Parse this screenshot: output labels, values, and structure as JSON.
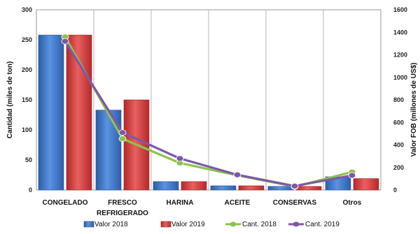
{
  "chart_data": {
    "type": "bar",
    "categories": [
      "CONGELADO",
      "FRESCO REFRIGERADO",
      "HARINA",
      "ACEITE",
      "CONSERVAS",
      "Otros"
    ],
    "category_lines": [
      [
        "CONGELADO"
      ],
      [
        "FRESCO",
        "REFRIGERADO"
      ],
      [
        "HARINA"
      ],
      [
        "ACEITE"
      ],
      [
        "CONSERVAS"
      ],
      [
        "Otros"
      ]
    ],
    "series": [
      {
        "name": "Valor 2018",
        "kind": "bar",
        "axis": "left",
        "color": "#3a73c4",
        "values": [
          258,
          133,
          14,
          7,
          6,
          22
        ]
      },
      {
        "name": "Valor 2019",
        "kind": "bar",
        "axis": "left",
        "color": "#d23b3b",
        "values": [
          258,
          150,
          14,
          7,
          6,
          19
        ]
      },
      {
        "name": "Cant. 2018",
        "kind": "line",
        "axis": "right",
        "color": "#8cc34a",
        "values": [
          1360,
          455,
          240,
          130,
          30,
          160
        ]
      },
      {
        "name": "Cant. 2019",
        "kind": "line",
        "axis": "right",
        "color": "#7e57a8",
        "values": [
          1320,
          510,
          280,
          135,
          35,
          130
        ]
      }
    ],
    "ylabel": "Cantidad (miles de ton)",
    "y2label": "Valor FOB (millones de US$)",
    "ylim": [
      0,
      300
    ],
    "y2lim": [
      0,
      1600
    ],
    "yticks": [
      0,
      50,
      100,
      150,
      200,
      250,
      300
    ],
    "y2ticks": [
      0,
      200,
      400,
      600,
      800,
      1000,
      1200,
      1400,
      1600
    ],
    "grid": "vertical category separators",
    "legend_position": "bottom"
  }
}
